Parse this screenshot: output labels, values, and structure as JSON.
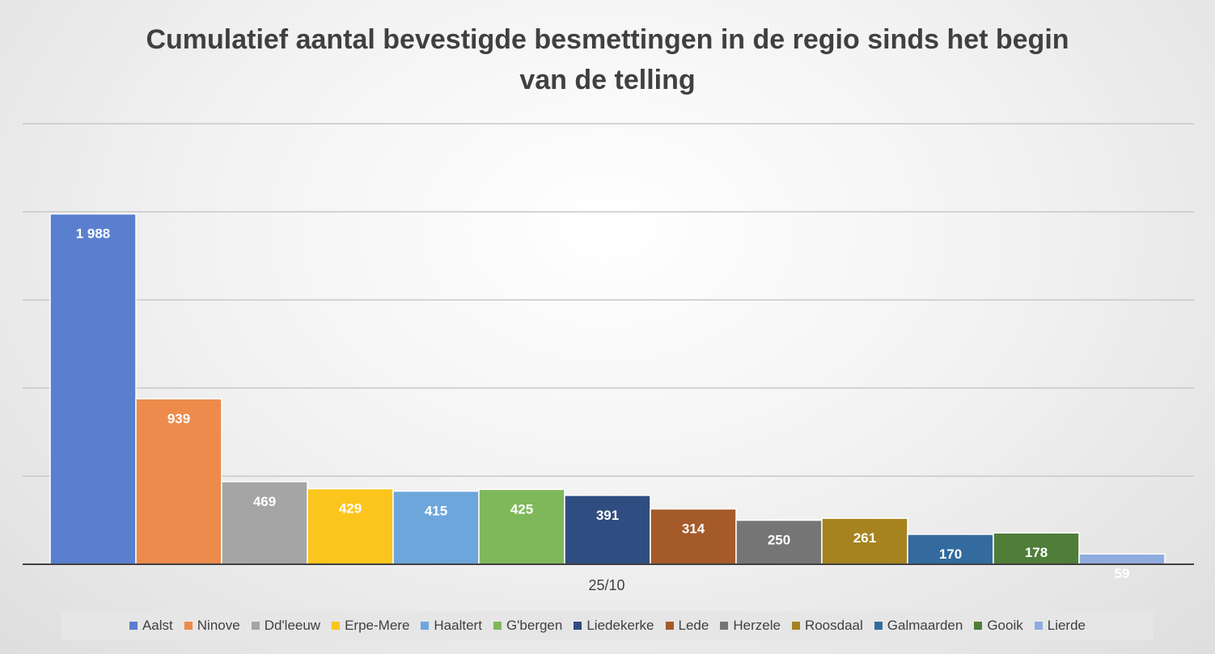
{
  "chart_data": {
    "type": "bar",
    "title": "Cumulatief aantal bevestigde besmettingen in de regio sinds het begin van de telling",
    "categories": [
      "25/10"
    ],
    "ylim": [
      0,
      2500
    ],
    "y_gridlines": [
      0,
      500,
      1000,
      1500,
      2000,
      2500
    ],
    "grid": true,
    "legend_position": "bottom",
    "data_labels": true,
    "series": [
      {
        "name": "Aalst",
        "values": [
          1988
        ],
        "label": "1 988",
        "color": "#5b7fcf"
      },
      {
        "name": "Ninove",
        "values": [
          939
        ],
        "label": "939",
        "color": "#ec8b4c"
      },
      {
        "name": "Dd'leeuw",
        "values": [
          469
        ],
        "label": "469",
        "color": "#a5a5a5"
      },
      {
        "name": "Erpe-Mere",
        "values": [
          429
        ],
        "label": "429",
        "color": "#fcc51e"
      },
      {
        "name": "Haaltert",
        "values": [
          415
        ],
        "label": "415",
        "color": "#6da6db"
      },
      {
        "name": "G'bergen",
        "values": [
          425
        ],
        "label": "425",
        "color": "#7fb85b"
      },
      {
        "name": "Liedekerke",
        "values": [
          391
        ],
        "label": "391",
        "color": "#2f4d80"
      },
      {
        "name": "Lede",
        "values": [
          314
        ],
        "label": "314",
        "color": "#a55a2a"
      },
      {
        "name": "Herzele",
        "values": [
          250
        ],
        "label": "250",
        "color": "#757575"
      },
      {
        "name": "Roosdaal",
        "values": [
          261
        ],
        "label": "261",
        "color": "#a6831f"
      },
      {
        "name": "Galmaarden",
        "values": [
          170
        ],
        "label": "170",
        "color": "#336b9e"
      },
      {
        "name": "Gooik",
        "values": [
          178
        ],
        "label": "178",
        "color": "#4e7e38"
      },
      {
        "name": "Lierde",
        "values": [
          59
        ],
        "label": "59",
        "color": "#90acdf"
      }
    ]
  }
}
